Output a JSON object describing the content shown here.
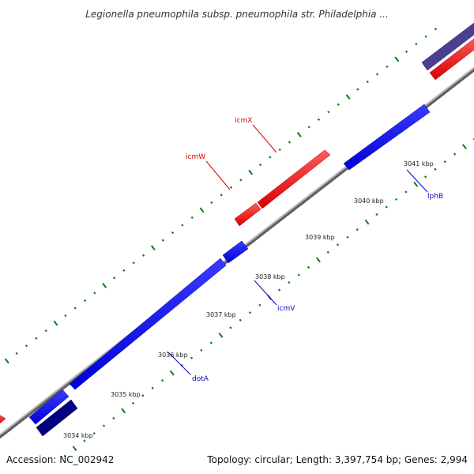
{
  "header": {
    "title": "Legionella pneumophila subsp. pneumophila str. Philadelphia ..."
  },
  "footer": {
    "accession": "Accession: NC_002942",
    "summary": "Topology: circular; Length: 3,397,754 bp; Genes: 2,994"
  },
  "colors": {
    "backbone": "#8c8c8c",
    "forward_gene": "#ff0000",
    "reverse_gene": "#0000ff",
    "dark_gene": "#000080",
    "purple_gene": "#4b3f8f",
    "tick_green": "#117711",
    "red_label": "#e00000",
    "blue_label": "#0000cc"
  },
  "scale": {
    "unit": "kbp",
    "tick_labels": [
      "3034 kbp",
      "3035 kbp",
      "3036 kbp",
      "3037 kbp",
      "3038 kbp",
      "3039 kbp",
      "3040 kbp",
      "3041 kbp"
    ]
  },
  "genes": [
    {
      "name": "icmW",
      "strand": "forward"
    },
    {
      "name": "icmX",
      "strand": "forward"
    },
    {
      "name": "lphB",
      "strand": "reverse"
    },
    {
      "name": "icmV",
      "strand": "reverse"
    },
    {
      "name": "dotA",
      "strand": "reverse"
    }
  ]
}
